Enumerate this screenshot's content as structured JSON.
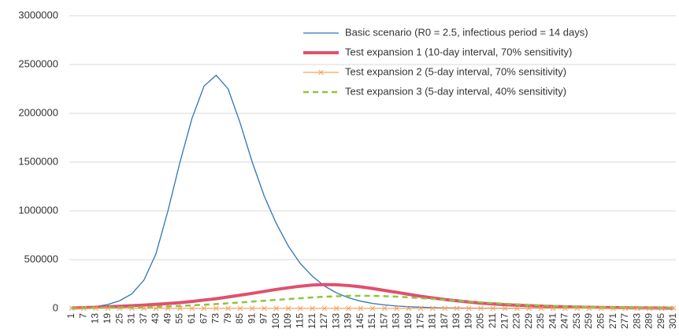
{
  "chart_data": {
    "type": "line",
    "categories": [
      1,
      7,
      13,
      19,
      25,
      31,
      37,
      43,
      49,
      55,
      61,
      67,
      73,
      79,
      85,
      91,
      97,
      103,
      109,
      115,
      121,
      127,
      133,
      139,
      145,
      151,
      157,
      163,
      169,
      175,
      181,
      187,
      193,
      199,
      205,
      211,
      217,
      223,
      229,
      235,
      241,
      247,
      253,
      259,
      265,
      271,
      277,
      283,
      289,
      295,
      301
    ],
    "series": [
      {
        "name": "Basic scenario (R0 = 2.5, infectious period = 14 days)",
        "color": "#2e75b6",
        "width": 1.3,
        "dash": false,
        "marker": false,
        "values": [
          5000,
          10000,
          20000,
          40000,
          80000,
          150000,
          290000,
          560000,
          1000000,
          1500000,
          1950000,
          2280000,
          2390000,
          2250000,
          1900000,
          1500000,
          1150000,
          870000,
          640000,
          460000,
          330000,
          230000,
          160000,
          110000,
          75000,
          52000,
          36000,
          25000,
          18000,
          13000,
          9000,
          6000,
          4500,
          3500,
          2700,
          2100,
          1700,
          1400,
          1200,
          1000,
          900,
          800,
          700,
          600,
          550,
          500,
          450,
          400,
          350,
          300,
          300
        ]
      },
      {
        "name": "Test expansion 1 (10-day interval, 70% sensitivity)",
        "color": "#e0506e",
        "width": 4,
        "dash": false,
        "marker": false,
        "values": [
          5000,
          8000,
          12000,
          17000,
          22000,
          28000,
          35000,
          42000,
          50000,
          60000,
          72000,
          86000,
          100000,
          118000,
          136000,
          155000,
          175000,
          195000,
          212000,
          228000,
          240000,
          245000,
          243000,
          235000,
          222000,
          205000,
          185000,
          165000,
          145000,
          125000,
          108000,
          92000,
          78000,
          66000,
          55000,
          46000,
          39000,
          33000,
          28000,
          24000,
          20000,
          17000,
          14000,
          12000,
          10000,
          8500,
          7200,
          6000,
          5000,
          4200,
          3500
        ]
      },
      {
        "name": "Test expansion 2 (5-day interval, 70% sensitivity)",
        "color": "#f4a460",
        "width": 1.2,
        "dash": false,
        "marker": true,
        "values": [
          2000,
          1800,
          1600,
          1500,
          1400,
          1300,
          1200,
          1100,
          1000,
          1000,
          1000,
          1000,
          1000,
          1000,
          1000,
          1000,
          1000,
          1000,
          1000,
          1000,
          1000,
          1000,
          1000,
          1000,
          1000,
          1000,
          1000,
          1000,
          1000,
          1000,
          1000,
          1000,
          1000,
          1000,
          1000,
          1000,
          1000,
          1000,
          1000,
          1000,
          1000,
          1000,
          1000,
          1000,
          1000,
          1000,
          1000,
          1000,
          1000,
          1000,
          1000
        ]
      },
      {
        "name": "Test expansion 3 (5-day interval, 40% sensitivity)",
        "color": "#8dc63f",
        "width": 2.5,
        "dash": true,
        "marker": false,
        "values": [
          3000,
          4000,
          5500,
          7000,
          9000,
          11000,
          14000,
          17000,
          21000,
          26000,
          32000,
          38000,
          45000,
          53000,
          61000,
          70000,
          79000,
          88000,
          97000,
          105000,
          113000,
          120000,
          125000,
          129000,
          130000,
          129000,
          126000,
          121000,
          114000,
          106000,
          98000,
          89000,
          80000,
          71000,
          63000,
          55000,
          48000,
          42000,
          36000,
          31000,
          27000,
          23000,
          20000,
          17000,
          14500,
          12500,
          10500,
          9000,
          7500,
          6500,
          5500
        ]
      }
    ],
    "ylim": [
      0,
      3000000
    ],
    "yticks": [
      0,
      500000,
      1000000,
      1500000,
      2000000,
      2500000,
      3000000
    ],
    "grid": true,
    "legend": "top-right"
  }
}
